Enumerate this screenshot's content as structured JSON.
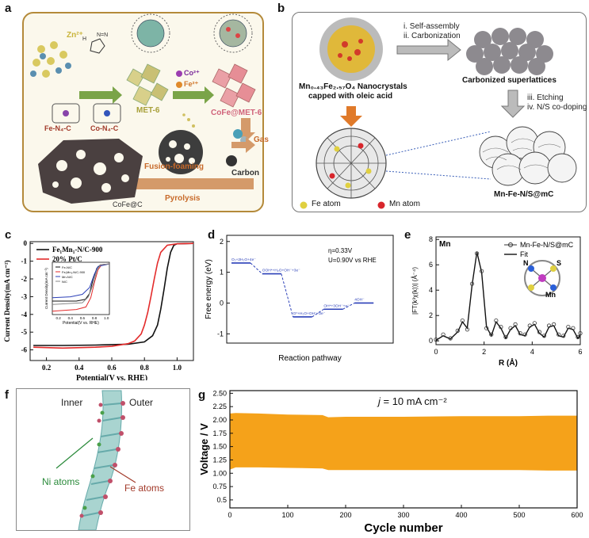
{
  "panels": {
    "a": {
      "label": "a",
      "zn": "Zn²⁺",
      "co": "Co²⁺",
      "fe": "Fe²⁺",
      "met6": "MET-6",
      "cofe_met6": "CoFe@MET-6",
      "fe_n4c": "Fe-N₄-C",
      "co_n4c": "Co-N₄-C",
      "gas": "Gas",
      "carbon": "Carbon",
      "fusion": "Fusion-foaming",
      "pyrolysis": "Pyrolysis",
      "cofe_c": "CoFe@C"
    },
    "b": {
      "label": "b",
      "step1": "i. Self-assembly",
      "step2": "ii. Carbonization",
      "nano_line1": "Mn₀.₄₃Fe₂.₅₇O₄ Nanocrystals",
      "nano_line2": "capped with oleic acid",
      "superlattices": "Carbonized superlattices",
      "step3": "iii. Etching",
      "step4": "iv. N/S co-doping",
      "fe_atom": "Fe atom",
      "mn_atom": "Mn atom",
      "product": "Mn-Fe-N/S@mC"
    },
    "c": {
      "label": "c"
    },
    "d": {
      "label": "d"
    },
    "e": {
      "label": "e"
    },
    "f": {
      "label": "f",
      "inner": "Inner",
      "outer": "Outer",
      "ni_atoms": "Ni atoms",
      "fe_atoms": "Fe atoms"
    },
    "g": {
      "label": "g",
      "annotation_j": "j",
      "annotation_rest": " = 10 mA cm⁻²"
    }
  },
  "colors": {
    "fe": "#e3d23a",
    "mn": "#d8262c",
    "orange": "#f5a21a",
    "red": "#e32b2b",
    "blue": "#2b3fb8"
  },
  "chart_data": [
    {
      "id": "c",
      "type": "line",
      "title": "",
      "xlabel": "Potential(V vs. RHE)",
      "ylabel": "Current Density(mA cm⁻²)",
      "xlim": [
        0.1,
        1.1
      ],
      "ylim": [
        -6.6,
        0.1
      ],
      "xticks": [
        "0.2",
        "0.4",
        "0.6",
        "0.8",
        "1.0"
      ],
      "yticks": [
        "-6",
        "-5",
        "-4",
        "-3",
        "-2",
        "-1",
        "0"
      ],
      "legend": "top-left",
      "series": [
        {
          "name": "Fe₁Mn₁-N/C-900",
          "color": "#111111",
          "x": [
            0.12,
            0.3,
            0.5,
            0.7,
            0.8,
            0.85,
            0.88,
            0.9,
            0.92,
            0.94,
            0.96,
            0.98,
            1.0,
            1.1
          ],
          "y": [
            -5.75,
            -5.75,
            -5.73,
            -5.68,
            -5.55,
            -5.2,
            -4.6,
            -3.7,
            -2.6,
            -1.4,
            -0.5,
            -0.1,
            -0.02,
            0.0
          ]
        },
        {
          "name": "20% Pt/C",
          "color": "#e32b2b",
          "x": [
            0.12,
            0.3,
            0.5,
            0.6,
            0.7,
            0.74,
            0.78,
            0.8,
            0.82,
            0.84,
            0.86,
            0.88,
            0.9,
            0.94,
            1.0,
            1.1
          ],
          "y": [
            -5.85,
            -5.9,
            -5.85,
            -5.8,
            -5.65,
            -5.5,
            -5.1,
            -4.6,
            -3.9,
            -3.0,
            -2.0,
            -1.1,
            -0.5,
            -0.1,
            -0.02,
            0.0
          ]
        }
      ],
      "inset": {
        "xlabel": "Potential(V vs. RHE)",
        "ylabel": "Current Density(mA cm⁻²)",
        "xticks": [
          "0.2",
          "0.4",
          "0.6",
          "0.8",
          "1.0"
        ],
        "legend": [
          "Fe-N/C",
          "Fe₁Mn₁-N/C-900",
          "Mn-N/C",
          "N/C"
        ],
        "colors": [
          "#111111",
          "#e32b2b",
          "#2b3fb8",
          "#888888"
        ]
      }
    },
    {
      "id": "d",
      "type": "line",
      "title": "",
      "xlabel": "Reaction pathway",
      "ylabel": "Free energy (eV)",
      "ylim": [
        -1.3,
        2.2
      ],
      "yticks": [
        "-1",
        "0",
        "1",
        "2"
      ],
      "annotations": [
        "η=0.33V",
        "U=0.90V vs RHE"
      ],
      "steps": [
        {
          "label": "O₂+2H₂O+4e⁻",
          "value": 1.3
        },
        {
          "label": "OOH*+H₂O+OH⁻+3e⁻",
          "value": 0.95
        },
        {
          "label": "O*+H₂O+OH⁻+2e⁻",
          "value": -0.45
        },
        {
          "label": "OH*+3OH⁻+e⁻",
          "value": -0.2
        },
        {
          "label": "4OH⁻",
          "value": 0.0
        }
      ]
    },
    {
      "id": "e",
      "type": "line",
      "title": "Mn",
      "xlabel": "R (Å)",
      "ylabel": "|FT(k³χ(k))| (Å⁻⁴)",
      "xlim": [
        0,
        6
      ],
      "ylim": [
        -0.3,
        8.2
      ],
      "xticks": [
        "0",
        "2",
        "4",
        "6"
      ],
      "yticks": [
        "0",
        "2",
        "4",
        "6",
        "8"
      ],
      "legend": "top-right",
      "series": [
        {
          "name": "Mn-Fe-N/S@mC",
          "color": "#333333",
          "x": [
            0,
            0.3,
            0.6,
            0.9,
            1.1,
            1.3,
            1.5,
            1.7,
            1.9,
            2.1,
            2.3,
            2.5,
            2.7,
            2.9,
            3.1,
            3.3,
            3.5,
            3.7,
            3.9,
            4.1,
            4.3,
            4.5,
            4.7,
            4.9,
            5.1,
            5.3,
            5.5,
            5.7,
            5.9,
            6.0
          ],
          "y": [
            0.1,
            0.5,
            0.2,
            0.8,
            1.6,
            0.9,
            4.5,
            6.9,
            5.5,
            1.0,
            0.5,
            1.6,
            1.1,
            0.3,
            1.0,
            1.3,
            0.6,
            0.5,
            1.2,
            1.4,
            0.7,
            0.4,
            1.2,
            1.3,
            0.5,
            0.4,
            1.1,
            1.0,
            0.3,
            0.6
          ]
        },
        {
          "name": "Fit",
          "color": "#111111",
          "x": [
            0,
            0.3,
            0.6,
            0.9,
            1.1,
            1.3,
            1.5,
            1.7,
            1.9,
            2.1,
            2.3,
            2.5,
            2.7,
            2.9,
            3.1,
            3.3,
            3.5,
            3.7,
            3.9,
            4.1,
            4.3,
            4.5,
            4.7,
            4.9,
            5.1,
            5.3,
            5.5,
            5.7,
            5.9,
            6.0
          ],
          "y": [
            0.05,
            0.4,
            0.15,
            0.7,
            1.5,
            1.0,
            4.4,
            7.0,
            5.4,
            1.1,
            0.4,
            1.5,
            1.0,
            0.2,
            0.9,
            1.2,
            0.5,
            0.4,
            1.1,
            1.3,
            0.6,
            0.3,
            1.1,
            1.2,
            0.4,
            0.3,
            1.0,
            0.9,
            0.2,
            0.5
          ]
        }
      ],
      "inset_labels": [
        "N",
        "S",
        "Mn"
      ]
    },
    {
      "id": "g",
      "type": "area",
      "title": "",
      "xlabel": "Cycle number",
      "ylabel": "Voltage / V",
      "xlim": [
        0,
        600
      ],
      "ylim": [
        0.35,
        2.55
      ],
      "xticks": [
        "0",
        "100",
        "200",
        "300",
        "400",
        "500",
        "600"
      ],
      "yticks": [
        "0.5",
        "0.75",
        "1.00",
        "1.25",
        "1.50",
        "1.75",
        "2.00",
        "2.25",
        "2.50"
      ],
      "color": "#f5a21a",
      "x": [
        0,
        10,
        50,
        100,
        160,
        170,
        200,
        300,
        400,
        500,
        550,
        600
      ],
      "upper": [
        2.12,
        2.13,
        2.12,
        2.1,
        2.09,
        2.05,
        2.06,
        2.06,
        2.07,
        2.07,
        2.08,
        2.08
      ],
      "lower": [
        1.07,
        1.11,
        1.11,
        1.1,
        1.09,
        1.06,
        1.06,
        1.06,
        1.06,
        1.06,
        1.05,
        1.05
      ]
    }
  ]
}
